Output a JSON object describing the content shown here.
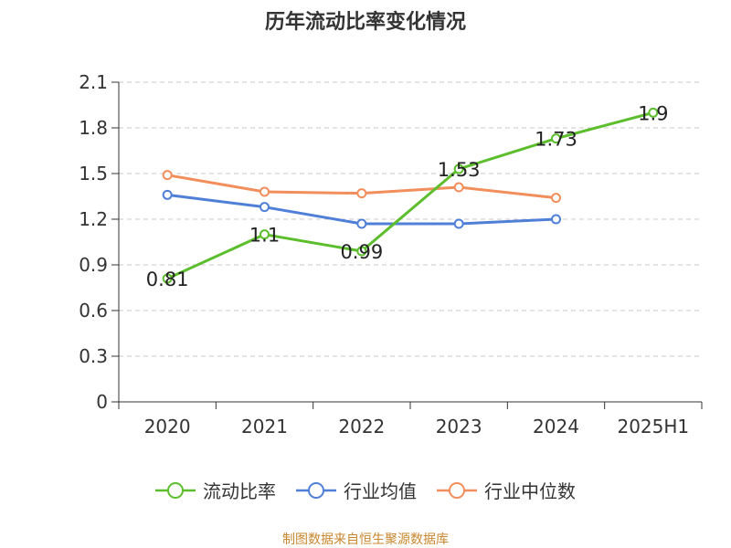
{
  "chart_data": {
    "type": "line",
    "title": "历年流动比率变化情况",
    "categories": [
      "2020",
      "2021",
      "2022",
      "2023",
      "2024",
      "2025H1"
    ],
    "ylim": [
      0,
      2.1
    ],
    "yticks": [
      "0",
      "0.3",
      "0.6",
      "0.9",
      "1.2",
      "1.5",
      "1.8",
      "2.1"
    ],
    "grid": true,
    "legend_position": "bottom",
    "series": [
      {
        "name": "流动比率",
        "color": "#5dbe2d",
        "values": [
          0.81,
          1.1,
          0.99,
          1.53,
          1.73,
          1.9
        ],
        "labels": [
          "0.81",
          "1.1",
          "0.99",
          "1.53",
          "1.73",
          "1.9"
        ],
        "show_labels": true
      },
      {
        "name": "行业均值",
        "color": "#4f7fd6",
        "values": [
          1.36,
          1.28,
          1.17,
          1.17,
          1.2,
          null
        ],
        "show_labels": false
      },
      {
        "name": "行业中位数",
        "color": "#f28e5c",
        "values": [
          1.49,
          1.38,
          1.37,
          1.41,
          1.34,
          null
        ],
        "show_labels": false
      }
    ]
  },
  "source_text": "制图数据来自恒生聚源数据库"
}
